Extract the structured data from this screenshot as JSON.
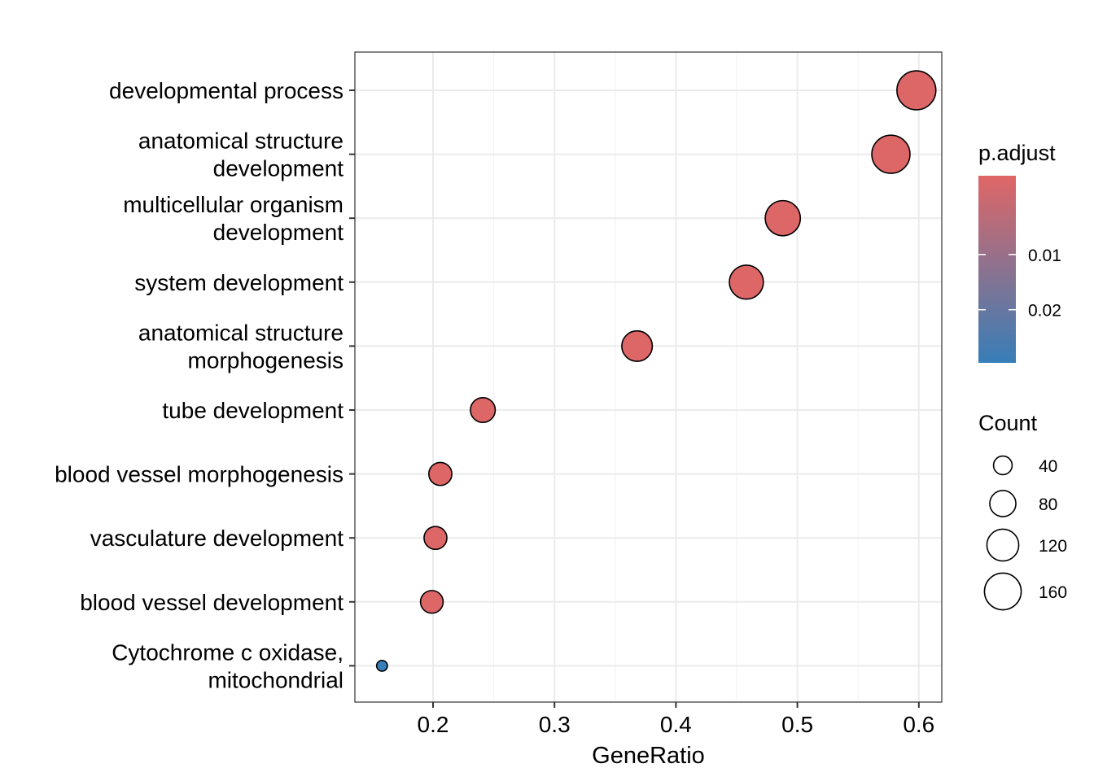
{
  "chart_data": {
    "type": "scatter",
    "xlabel": "GeneRatio",
    "ylabel": "",
    "xlim": [
      0.137,
      0.62
    ],
    "xticks": [
      0.2,
      0.3,
      0.4,
      0.5,
      0.6
    ],
    "xtick_labels": [
      "0.2",
      "0.3",
      "0.4",
      "0.5",
      "0.6"
    ],
    "grid": true,
    "categories": [
      [
        "developmental process"
      ],
      [
        "anatomical structure",
        "development"
      ],
      [
        "multicellular organism",
        "development"
      ],
      [
        "system development"
      ],
      [
        "anatomical structure",
        "morphogenesis"
      ],
      [
        "tube development"
      ],
      [
        "blood vessel morphogenesis"
      ],
      [
        "vasculature development"
      ],
      [
        "blood vessel development"
      ],
      [
        "Cytochrome c oxidase,",
        "mitochondrial"
      ]
    ],
    "points": [
      {
        "x": 0.598,
        "count": 180,
        "p_adjust": 0.0005
      },
      {
        "x": 0.577,
        "count": 173,
        "p_adjust": 0.0005
      },
      {
        "x": 0.488,
        "count": 146,
        "p_adjust": 0.0005
      },
      {
        "x": 0.458,
        "count": 137,
        "p_adjust": 0.0005
      },
      {
        "x": 0.368,
        "count": 110,
        "p_adjust": 0.0005
      },
      {
        "x": 0.241,
        "count": 72,
        "p_adjust": 0.0005
      },
      {
        "x": 0.206,
        "count": 62,
        "p_adjust": 0.0005
      },
      {
        "x": 0.202,
        "count": 61,
        "p_adjust": 0.0005
      },
      {
        "x": 0.199,
        "count": 60,
        "p_adjust": 0.0005
      },
      {
        "x": 0.158,
        "count": 13,
        "p_adjust": 0.03
      }
    ],
    "color_legend": {
      "title": "p.adjust",
      "low_color": "#E06666",
      "high_color": "#377EB8",
      "range": [
        0.0,
        0.03
      ],
      "breaks": [
        0.01,
        0.02
      ],
      "labels": [
        "0.01",
        "0.02"
      ]
    },
    "size_legend": {
      "title": "Count",
      "breaks": [
        40,
        80,
        120,
        160
      ],
      "labels": [
        "40",
        "80",
        "120",
        "160"
      ]
    },
    "legend_position": "right"
  }
}
